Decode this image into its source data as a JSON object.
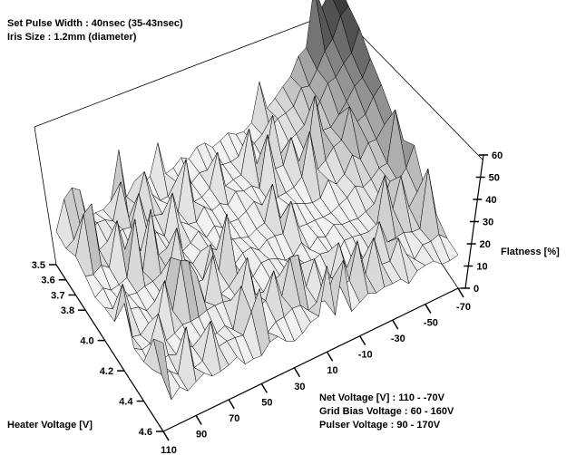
{
  "header_notes": [
    "Set Pulse Width : 40nsec (35-43nsec)",
    "Iris Size : 1.2mm (diameter)"
  ],
  "footer_notes": [
    "Net Voltage [V] : 110 - -70V",
    "Grid Bias Voltage : 60 - 160V",
    "Pulser Voltage : 90 - 170V"
  ],
  "chart_data": {
    "type": "surface3d",
    "x_axis": {
      "label": "Heater Voltage [V]",
      "ticks": [
        "3.5",
        "3.6",
        "3.7",
        "3.8",
        "4.0",
        "4.2",
        "4.4",
        "4.6"
      ],
      "range": [
        3.5,
        4.6
      ]
    },
    "y_axis": {
      "label": "",
      "ticks": [
        "110",
        "90",
        "70",
        "50",
        "30",
        "10",
        "-10",
        "-30",
        "-50",
        "-70"
      ],
      "range": [
        110,
        -70
      ],
      "unit_note": "Net Voltage [V]"
    },
    "z_axis": {
      "label": "Flatness [%]",
      "ticks": [
        0,
        10,
        20,
        30,
        40,
        50,
        60
      ],
      "range": [
        0,
        60
      ]
    },
    "surface_description": "Flatness is roughly 10-20% over most of the grid with jagged spikes up to ~35% near high heater voltage; it rises steeply toward negative net voltages at low heater voltage, reaching about 55-60% at the -70V / 3.5V corner.",
    "rows": 12,
    "cols": 37,
    "colors": {
      "low": "#f2f2f2",
      "high": "#111111",
      "edge": "#000000"
    }
  }
}
